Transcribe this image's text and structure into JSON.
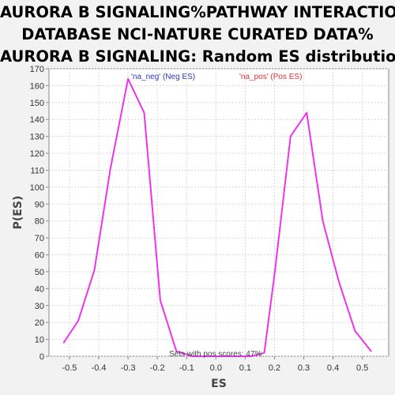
{
  "chart_data": {
    "type": "line",
    "title_lines": [
      "AURORA B SIGNALING%PATHWAY INTERACTION",
      "DATABASE NCI-NATURE CURATED DATA%",
      "AURORA B SIGNALING: Random ES distribution"
    ],
    "xlabel": "ES",
    "ylabel": "P(ES)",
    "xlim": [
      -0.57,
      0.59
    ],
    "ylim": [
      0,
      170
    ],
    "xticks": [
      -0.5,
      -0.4,
      -0.3,
      -0.2,
      -0.1,
      0.0,
      0.1,
      0.2,
      0.3,
      0.4,
      0.5
    ],
    "xtick_labels": [
      "-0.5",
      "-0.4",
      "-0.3",
      "-0.2",
      "-0.1",
      "0.0",
      "0.1",
      "0.2",
      "0.3",
      "0.4",
      "0.5"
    ],
    "yticks": [
      0,
      10,
      20,
      30,
      40,
      50,
      60,
      70,
      80,
      90,
      100,
      110,
      120,
      130,
      140,
      150,
      160,
      170
    ],
    "grid": true,
    "line_color": "#ee33ee",
    "series": [
      {
        "x": [
          -0.52,
          -0.47,
          -0.415,
          -0.36,
          -0.3,
          -0.245,
          -0.19,
          -0.135,
          -0.08,
          -0.03,
          0.02,
          0.07,
          0.12,
          0.165,
          0.2,
          0.255,
          0.31,
          0.365,
          0.42,
          0.475,
          0.53
        ],
        "y": [
          8,
          21,
          51,
          111,
          164,
          144,
          33,
          3,
          0,
          0,
          0,
          0,
          0,
          2,
          48,
          130,
          144,
          80,
          44,
          15,
          3
        ]
      }
    ],
    "legend": [
      {
        "label": "'na_neg' (Neg ES)",
        "color": "#3333cc"
      },
      {
        "label": "'na_pos' (Pos ES)",
        "color": "#dd3333"
      }
    ],
    "annotation": "Sets with pos scores: 47%"
  }
}
